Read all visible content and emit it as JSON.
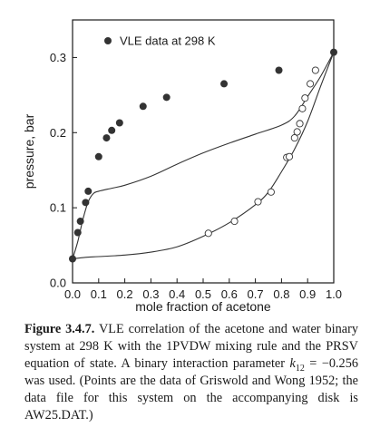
{
  "chart_data": {
    "type": "scatter",
    "xlabel": "mole fraction of acetone",
    "ylabel": "pressure, bar",
    "xlim": [
      0.0,
      1.0
    ],
    "ylim": [
      0.0,
      0.35
    ],
    "x_ticks": [
      "0.0",
      "0.1",
      "0.2",
      "0.3",
      "0.4",
      "0.5",
      "0.6",
      "0.7",
      "0.8",
      "0.9",
      "1.0"
    ],
    "y_ticks": [
      "0.0",
      "0.1",
      "0.2",
      "0.3"
    ],
    "y_tick_values": [
      0.0,
      0.1,
      0.2,
      0.3
    ],
    "legend": {
      "label": "VLE data at 298 K",
      "placement": "top-left"
    },
    "grid": false,
    "series": [
      {
        "name": "VLE data at 298 K",
        "marker": "filled-circle",
        "x": [
          0.0,
          0.02,
          0.03,
          0.05,
          0.06,
          0.1,
          0.13,
          0.15,
          0.18,
          0.27,
          0.36,
          0.58,
          0.79,
          1.0
        ],
        "y": [
          0.032,
          0.067,
          0.082,
          0.107,
          0.122,
          0.168,
          0.193,
          0.203,
          0.213,
          0.235,
          0.247,
          0.265,
          0.283,
          0.307
        ]
      },
      {
        "marker": "open-circle",
        "x": [
          0.52,
          0.62,
          0.71,
          0.76,
          0.82,
          0.83,
          0.85,
          0.86,
          0.87,
          0.88,
          0.89,
          0.91,
          0.93
        ],
        "y": [
          0.066,
          0.082,
          0.108,
          0.121,
          0.167,
          0.168,
          0.193,
          0.201,
          0.212,
          0.232,
          0.246,
          0.265,
          0.283
        ]
      },
      {
        "marker": "line",
        "x": [
          0.0,
          0.02,
          0.04,
          0.06,
          0.08,
          0.1,
          0.15,
          0.2,
          0.3,
          0.4,
          0.5,
          0.6,
          0.7,
          0.8,
          0.85,
          0.9,
          0.95,
          1.0
        ],
        "y": [
          0.032,
          0.055,
          0.085,
          0.108,
          0.119,
          0.122,
          0.126,
          0.13,
          0.142,
          0.158,
          0.173,
          0.186,
          0.198,
          0.21,
          0.222,
          0.248,
          0.275,
          0.307
        ]
      },
      {
        "marker": "line",
        "x": [
          0.0,
          0.05,
          0.1,
          0.2,
          0.3,
          0.4,
          0.5,
          0.6,
          0.7,
          0.75,
          0.8,
          0.85,
          0.9,
          0.95,
          1.0
        ],
        "y": [
          0.032,
          0.034,
          0.035,
          0.037,
          0.041,
          0.048,
          0.062,
          0.08,
          0.104,
          0.121,
          0.148,
          0.178,
          0.215,
          0.262,
          0.307
        ]
      }
    ]
  },
  "caption": {
    "label": "Figure 3.4.7.",
    "text_before_k": " VLE correlation of the acetone and water binary system at 298 K with the 1PVDW mixing rule and the PRSV equation of state. A binary interaction parameter ",
    "k_symbol": "k",
    "k_subscript": "12",
    "text_after_k": " = −0.256 was used. (Points are the data of Griswold and Wong 1952; the data file for this system on the accompanying disk is AW25.DAT.)"
  }
}
